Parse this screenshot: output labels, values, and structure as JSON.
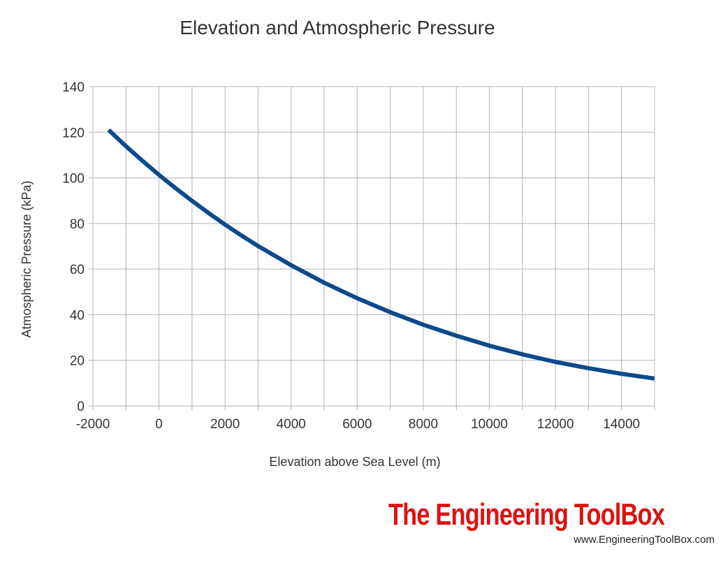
{
  "chart_data": {
    "type": "line",
    "title": "Elevation and Atmospheric Pressure",
    "xlabel": "Elevation above Sea Level (m)",
    "ylabel": "Atmospheric Pressure (kPa)",
    "xlim": [
      -2000,
      15000
    ],
    "ylim": [
      0,
      140
    ],
    "xticks": [
      -2000,
      0,
      2000,
      4000,
      6000,
      8000,
      10000,
      12000,
      14000
    ],
    "yticks": [
      0,
      20,
      40,
      60,
      80,
      100,
      120,
      140
    ],
    "x_minor_step": 1000,
    "grid": true,
    "series": [
      {
        "name": "Atmospheric Pressure",
        "color": "#0c4a8a",
        "x": [
          -1524,
          -1000,
          -500,
          0,
          500,
          1000,
          1500,
          2000,
          2500,
          3000,
          4000,
          5000,
          6000,
          7000,
          8000,
          9000,
          10000,
          11000,
          12000,
          13000,
          14000,
          15000
        ],
        "y": [
          121.0,
          113.9,
          107.5,
          101.3,
          95.5,
          89.9,
          84.6,
          79.5,
          74.7,
          70.1,
          61.7,
          54.0,
          47.2,
          41.1,
          35.6,
          30.8,
          26.4,
          22.6,
          19.3,
          16.5,
          14.1,
          12.0
        ]
      }
    ]
  },
  "brand": {
    "name": "The Engineering ToolBox",
    "url": "www.EngineeringToolBox.com",
    "color": "#dd1111"
  }
}
